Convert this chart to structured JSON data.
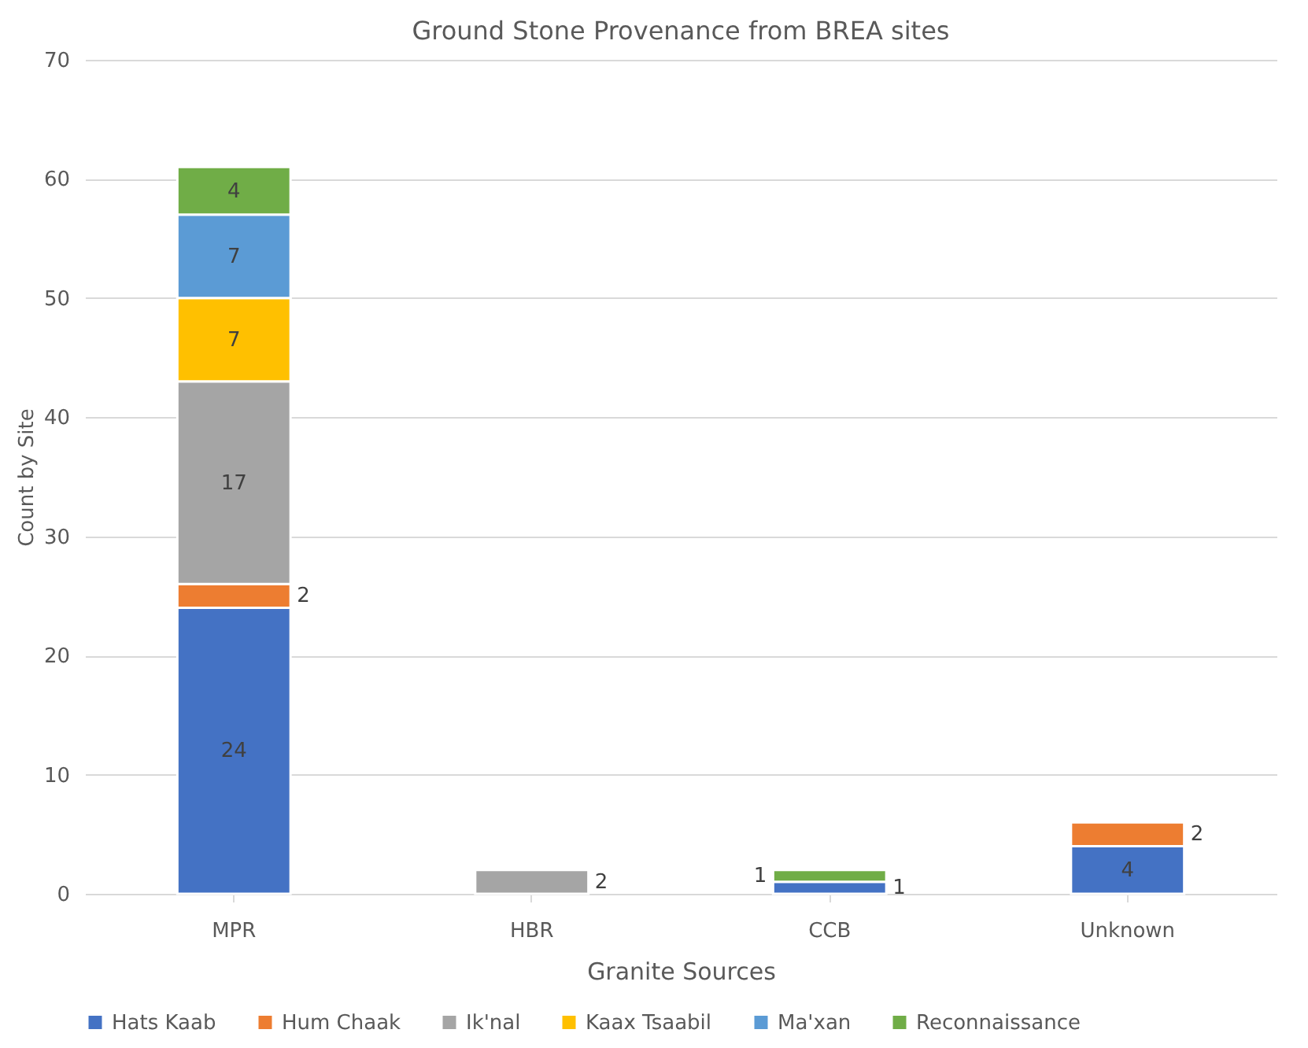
{
  "chart_data": {
    "type": "bar",
    "title": "Ground Stone Provenance from BREA sites",
    "xlabel": "Granite Sources",
    "ylabel": "Count by Site",
    "categories": [
      "MPR",
      "HBR",
      "CCB",
      "Unknown"
    ],
    "series": [
      {
        "name": "Hats Kaab",
        "color": "#4472c4",
        "values": [
          24,
          null,
          1,
          4
        ]
      },
      {
        "name": "Hum Chaak",
        "color": "#ed7d31",
        "values": [
          2,
          null,
          null,
          2
        ]
      },
      {
        "name": "Ik'nal",
        "color": "#a5a5a5",
        "values": [
          17,
          2,
          null,
          null
        ]
      },
      {
        "name": "Kaax Tsaabil",
        "color": "#ffc000",
        "values": [
          7,
          null,
          null,
          null
        ]
      },
      {
        "name": "Ma'xan",
        "color": "#5b9bd5",
        "values": [
          7,
          null,
          null,
          null
        ]
      },
      {
        "name": "Reconnaissance",
        "color": "#70ad47",
        "values": [
          4,
          null,
          1,
          null
        ]
      }
    ],
    "stacked": true,
    "data_labels": true,
    "ylim": [
      0,
      70
    ],
    "yticks": [
      0,
      10,
      20,
      30,
      40,
      50,
      60,
      70
    ],
    "grid": "y",
    "legend": "bottom"
  }
}
